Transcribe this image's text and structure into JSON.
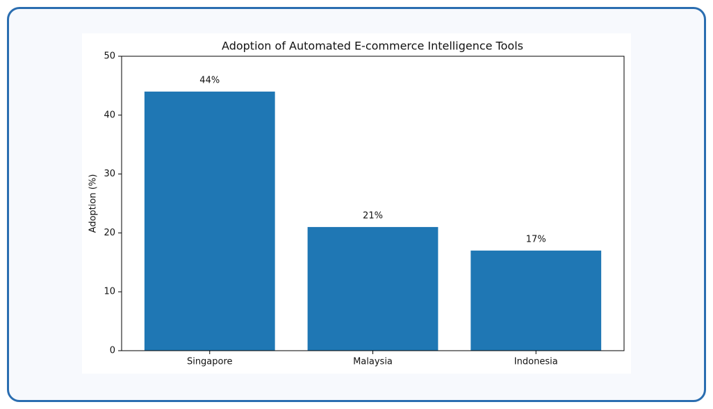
{
  "chart_data": {
    "type": "bar",
    "title": "Adoption of Automated E-commerce Intelligence Tools",
    "y_label": "Adoption (%)",
    "categories": [
      "Singapore",
      "Malaysia",
      "Indonesia"
    ],
    "values": [
      44,
      21,
      17
    ],
    "value_labels": [
      "44%",
      "21%",
      "17%"
    ],
    "color": "#1f77b4",
    "ylim": [
      0,
      50
    ],
    "yticks": [
      0,
      10,
      20,
      30,
      40,
      50
    ],
    "grid": false
  }
}
